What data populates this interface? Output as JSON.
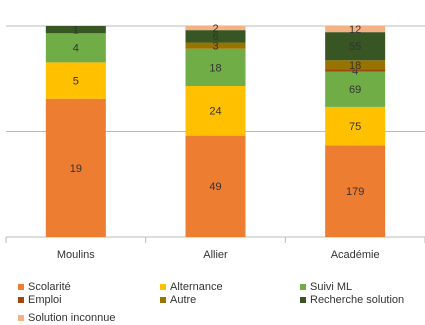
{
  "chart_data": {
    "type": "stacked_bar_percent",
    "categories": [
      "Moulins",
      "Allier",
      "Académie"
    ],
    "series": [
      {
        "name": "Scolarité",
        "color": "#ed7d31",
        "values": [
          19,
          49,
          179
        ]
      },
      {
        "name": "Alternance",
        "color": "#ffc000",
        "values": [
          5,
          24,
          75
        ]
      },
      {
        "name": "Suivi ML",
        "color": "#70ad47",
        "values": [
          4,
          18,
          69
        ]
      },
      {
        "name": "Emploi",
        "color": "#9e480e",
        "values": [
          0,
          0,
          4
        ]
      },
      {
        "name": "Autre",
        "color": "#997300",
        "values": [
          0,
          3,
          18
        ]
      },
      {
        "name": "Recherche solution",
        "color": "#375623",
        "values": [
          1,
          6,
          55
        ]
      },
      {
        "name": "Solution inconnue",
        "color": "#f4b183",
        "values": [
          0,
          2,
          12
        ]
      }
    ],
    "ylim": [
      0,
      100
    ],
    "yticks": [
      0,
      50,
      100
    ],
    "grid": true
  }
}
